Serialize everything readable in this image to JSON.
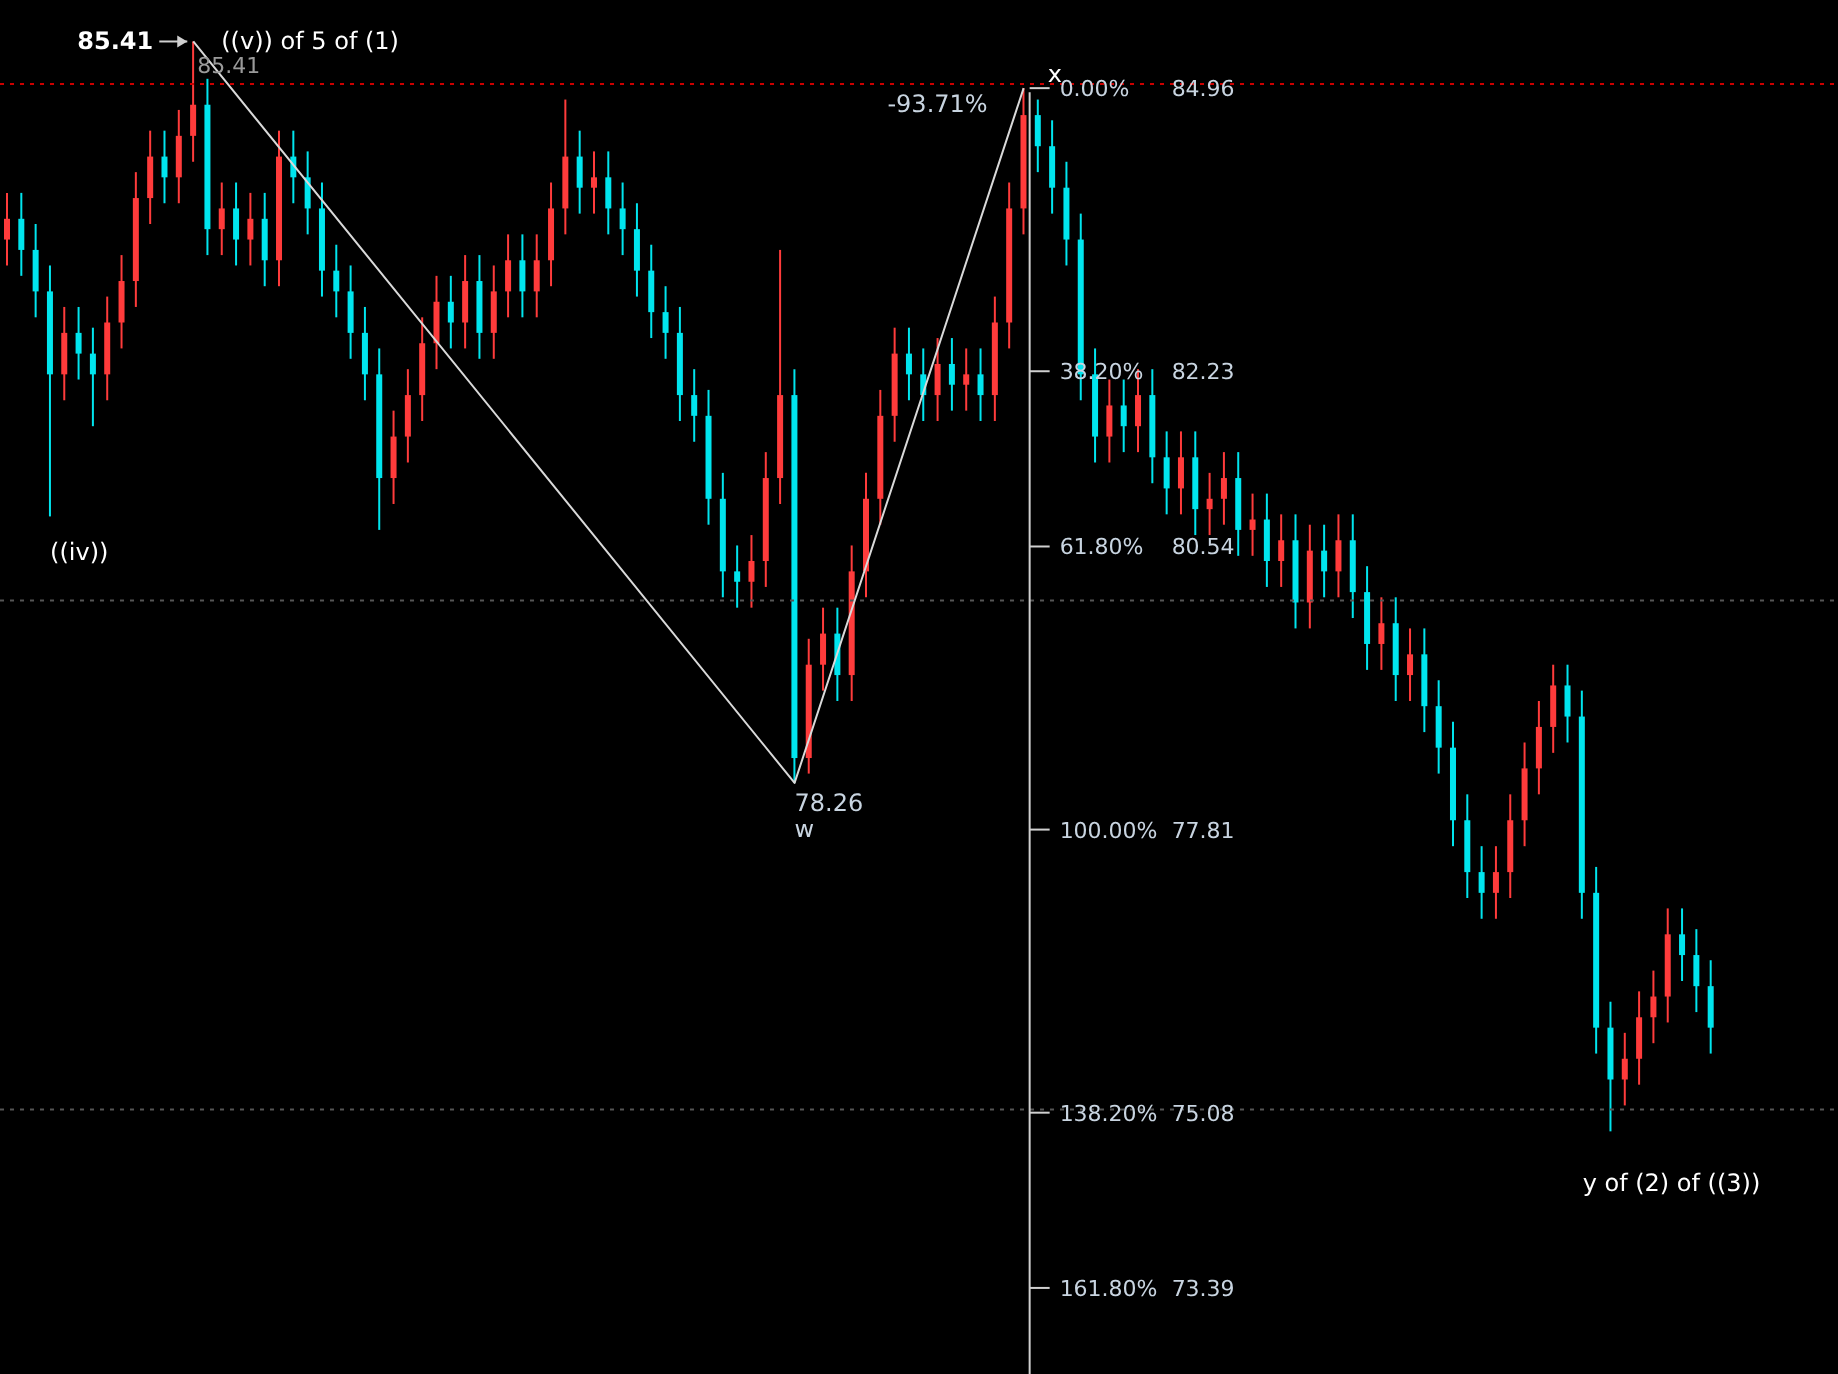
{
  "chart_data": {
    "type": "candlestick",
    "categories": [
      null,
      null,
      null,
      null,
      null,
      null,
      null,
      null,
      null,
      null,
      null,
      null,
      null,
      null,
      null,
      null,
      null,
      null,
      null,
      null,
      null,
      null,
      null,
      null,
      null,
      null,
      null,
      null,
      null,
      null,
      null,
      null,
      null,
      null,
      null,
      null,
      null,
      null,
      null,
      null,
      null,
      null,
      null,
      null,
      null,
      null,
      null,
      null,
      null,
      null,
      null,
      null,
      null,
      null,
      null,
      null,
      null,
      null,
      null,
      null,
      null,
      null,
      null,
      null,
      null,
      null,
      null,
      null,
      null,
      null,
      null,
      null,
      null,
      null,
      null,
      null,
      null,
      null,
      null,
      null,
      null,
      null,
      null,
      null,
      null,
      null,
      null,
      null,
      null,
      null,
      null,
      null,
      null,
      null,
      null,
      null,
      null,
      null,
      null,
      null,
      null,
      null,
      null,
      null,
      null,
      null,
      null,
      null,
      null,
      null,
      null,
      null,
      null,
      null,
      null,
      null,
      null,
      null,
      null,
      null
    ],
    "ohlc": [
      [
        83.5,
        83.95,
        83.25,
        83.7
      ],
      [
        83.7,
        83.95,
        83.15,
        83.4
      ],
      [
        83.4,
        83.65,
        82.75,
        83.0
      ],
      [
        83.0,
        83.25,
        80.83,
        82.2
      ],
      [
        82.2,
        82.85,
        81.95,
        82.6
      ],
      [
        82.6,
        82.85,
        82.15,
        82.4
      ],
      [
        82.4,
        82.65,
        81.7,
        82.2
      ],
      [
        82.2,
        82.95,
        81.95,
        82.7
      ],
      [
        82.7,
        83.35,
        82.45,
        83.1
      ],
      [
        83.1,
        84.15,
        82.85,
        83.9
      ],
      [
        83.9,
        84.55,
        83.65,
        84.3
      ],
      [
        84.3,
        84.55,
        83.85,
        84.1
      ],
      [
        84.1,
        84.75,
        83.85,
        84.5
      ],
      [
        84.5,
        85.41,
        84.25,
        84.8
      ],
      [
        84.8,
        85.05,
        83.35,
        83.6
      ],
      [
        83.6,
        84.05,
        83.35,
        83.8
      ],
      [
        83.8,
        84.05,
        83.25,
        83.5
      ],
      [
        83.5,
        83.95,
        83.25,
        83.7
      ],
      [
        83.7,
        83.95,
        83.05,
        83.3
      ],
      [
        83.3,
        84.55,
        83.05,
        84.3
      ],
      [
        84.3,
        84.55,
        83.85,
        84.1
      ],
      [
        84.1,
        84.35,
        83.55,
        83.8
      ],
      [
        83.8,
        84.05,
        82.95,
        83.2
      ],
      [
        83.2,
        83.45,
        82.75,
        83.0
      ],
      [
        83.0,
        83.25,
        82.35,
        82.6
      ],
      [
        82.6,
        82.85,
        81.95,
        82.2
      ],
      [
        82.2,
        82.45,
        80.7,
        81.2
      ],
      [
        81.2,
        81.85,
        80.95,
        81.6
      ],
      [
        81.6,
        82.25,
        81.35,
        82.0
      ],
      [
        82.0,
        82.75,
        81.75,
        82.5
      ],
      [
        82.5,
        83.15,
        82.25,
        82.9
      ],
      [
        82.9,
        83.15,
        82.45,
        82.7
      ],
      [
        82.7,
        83.35,
        82.45,
        83.1
      ],
      [
        83.1,
        83.35,
        82.35,
        82.6
      ],
      [
        82.6,
        83.25,
        82.35,
        83.0
      ],
      [
        83.0,
        83.55,
        82.75,
        83.3
      ],
      [
        83.3,
        83.55,
        82.75,
        83.0
      ],
      [
        83.0,
        83.55,
        82.75,
        83.3
      ],
      [
        83.3,
        84.05,
        83.05,
        83.8
      ],
      [
        83.8,
        84.85,
        83.55,
        84.3
      ],
      [
        84.3,
        84.55,
        83.75,
        84.0
      ],
      [
        84.0,
        84.35,
        83.75,
        84.1
      ],
      [
        84.1,
        84.35,
        83.55,
        83.8
      ],
      [
        83.8,
        84.05,
        83.35,
        83.6
      ],
      [
        83.6,
        83.85,
        82.95,
        83.2
      ],
      [
        83.2,
        83.45,
        82.55,
        82.8
      ],
      [
        82.8,
        83.05,
        82.35,
        82.6
      ],
      [
        82.6,
        82.85,
        81.75,
        82.0
      ],
      [
        82.0,
        82.25,
        81.55,
        81.8
      ],
      [
        81.8,
        82.05,
        80.75,
        81.0
      ],
      [
        81.0,
        81.25,
        80.05,
        80.3
      ],
      [
        80.3,
        80.55,
        79.95,
        80.2
      ],
      [
        80.2,
        80.65,
        79.95,
        80.4
      ],
      [
        80.4,
        81.45,
        80.15,
        81.2
      ],
      [
        81.2,
        83.4,
        80.95,
        82.0
      ],
      [
        82.0,
        82.25,
        78.26,
        78.5
      ],
      [
        78.5,
        79.65,
        78.35,
        79.4
      ],
      [
        79.4,
        79.95,
        79.15,
        79.7
      ],
      [
        79.7,
        79.95,
        79.05,
        79.3
      ],
      [
        79.3,
        80.55,
        79.05,
        80.3
      ],
      [
        80.3,
        81.25,
        80.05,
        81.0
      ],
      [
        81.0,
        82.05,
        80.75,
        81.8
      ],
      [
        81.8,
        82.65,
        81.55,
        82.4
      ],
      [
        82.4,
        82.65,
        81.95,
        82.2
      ],
      [
        82.2,
        82.45,
        81.75,
        82.0
      ],
      [
        82.0,
        82.55,
        81.75,
        82.3
      ],
      [
        82.3,
        82.55,
        81.85,
        82.1
      ],
      [
        82.1,
        82.45,
        81.85,
        82.2
      ],
      [
        82.2,
        82.45,
        81.75,
        82.0
      ],
      [
        82.0,
        82.95,
        81.75,
        82.7
      ],
      [
        82.7,
        84.05,
        82.45,
        83.8
      ],
      [
        83.8,
        84.96,
        83.55,
        84.7
      ],
      [
        84.7,
        84.85,
        84.15,
        84.4
      ],
      [
        84.4,
        84.65,
        83.75,
        84.0
      ],
      [
        84.0,
        84.25,
        83.25,
        83.5
      ],
      [
        83.5,
        83.75,
        81.95,
        82.2
      ],
      [
        82.2,
        82.45,
        81.35,
        81.6
      ],
      [
        81.6,
        82.15,
        81.35,
        81.9
      ],
      [
        81.9,
        82.15,
        81.45,
        81.7
      ],
      [
        81.7,
        82.25,
        81.45,
        82.0
      ],
      [
        82.0,
        82.25,
        81.15,
        81.4
      ],
      [
        81.4,
        81.65,
        80.85,
        81.1
      ],
      [
        81.1,
        81.65,
        80.85,
        81.4
      ],
      [
        81.4,
        81.65,
        80.65,
        80.9
      ],
      [
        80.9,
        81.25,
        80.65,
        81.0
      ],
      [
        81.0,
        81.45,
        80.75,
        81.2
      ],
      [
        81.2,
        81.45,
        80.45,
        80.7
      ],
      [
        80.7,
        81.05,
        80.45,
        80.8
      ],
      [
        80.8,
        81.05,
        80.15,
        80.4
      ],
      [
        80.4,
        80.85,
        80.15,
        80.6
      ],
      [
        80.6,
        80.85,
        79.75,
        80.0
      ],
      [
        80.0,
        80.75,
        79.75,
        80.5
      ],
      [
        80.5,
        80.75,
        80.05,
        80.3
      ],
      [
        80.3,
        80.85,
        80.05,
        80.6
      ],
      [
        80.6,
        80.85,
        79.85,
        80.1
      ],
      [
        80.1,
        80.35,
        79.35,
        79.6
      ],
      [
        79.6,
        80.05,
        79.35,
        79.8
      ],
      [
        79.8,
        80.05,
        79.05,
        79.3
      ],
      [
        79.3,
        79.75,
        79.05,
        79.5
      ],
      [
        79.5,
        79.75,
        78.75,
        79.0
      ],
      [
        79.0,
        79.25,
        78.35,
        78.6
      ],
      [
        78.6,
        78.85,
        77.65,
        77.9
      ],
      [
        77.9,
        78.15,
        77.15,
        77.4
      ],
      [
        77.4,
        77.65,
        76.95,
        77.2
      ],
      [
        77.2,
        77.65,
        76.95,
        77.4
      ],
      [
        77.4,
        78.15,
        77.15,
        77.9
      ],
      [
        77.9,
        78.65,
        77.65,
        78.4
      ],
      [
        78.4,
        79.05,
        78.15,
        78.8
      ],
      [
        78.8,
        79.4,
        78.55,
        79.2
      ],
      [
        79.2,
        79.4,
        78.65,
        78.9
      ],
      [
        78.9,
        79.15,
        76.95,
        77.2
      ],
      [
        77.2,
        77.45,
        75.65,
        75.9
      ],
      [
        75.9,
        76.15,
        74.9,
        75.4
      ],
      [
        75.4,
        75.85,
        75.15,
        75.6
      ],
      [
        75.6,
        76.25,
        75.35,
        76.0
      ],
      [
        76.0,
        76.45,
        75.75,
        76.2
      ],
      [
        76.2,
        77.05,
        75.95,
        76.8
      ],
      [
        76.8,
        77.05,
        76.35,
        76.6
      ],
      [
        76.6,
        76.85,
        76.05,
        76.3
      ],
      [
        76.3,
        76.55,
        75.65,
        75.9
      ]
    ],
    "colors": [
      "#ff3b3b",
      "#00e5ee",
      "#00e5ee",
      "#00e5ee",
      "#ff3b3b",
      "#00e5ee",
      "#00e5ee",
      "#ff3b3b",
      "#ff3b3b",
      "#ff3b3b",
      "#ff3b3b",
      "#00e5ee",
      "#ff3b3b",
      "#ff3b3b",
      "#00e5ee",
      "#ff3b3b",
      "#00e5ee",
      "#ff3b3b",
      "#00e5ee",
      "#ff3b3b",
      "#00e5ee",
      "#00e5ee",
      "#00e5ee",
      "#00e5ee",
      "#00e5ee",
      "#00e5ee",
      "#00e5ee",
      "#ff3b3b",
      "#ff3b3b",
      "#ff3b3b",
      "#ff3b3b",
      "#00e5ee",
      "#ff3b3b",
      "#00e5ee",
      "#ff3b3b",
      "#ff3b3b",
      "#00e5ee",
      "#ff3b3b",
      "#ff3b3b",
      "#ff3b3b",
      "#00e5ee",
      "#ff3b3b",
      "#00e5ee",
      "#00e5ee",
      "#00e5ee",
      "#00e5ee",
      "#00e5ee",
      "#00e5ee",
      "#00e5ee",
      "#00e5ee",
      "#00e5ee",
      "#00e5ee",
      "#ff3b3b",
      "#ff3b3b",
      "#ff3b3b",
      "#00e5ee",
      "#ff3b3b",
      "#ff3b3b",
      "#00e5ee",
      "#ff3b3b",
      "#ff3b3b",
      "#ff3b3b",
      "#ff3b3b",
      "#00e5ee",
      "#00e5ee",
      "#ff3b3b",
      "#00e5ee",
      "#ff3b3b",
      "#00e5ee",
      "#ff3b3b",
      "#ff3b3b",
      "#ff3b3b",
      "#00e5ee",
      "#00e5ee",
      "#00e5ee",
      "#00e5ee",
      "#00e5ee",
      "#ff3b3b",
      "#00e5ee",
      "#ff3b3b",
      "#00e5ee",
      "#00e5ee",
      "#ff3b3b",
      "#00e5ee",
      "#ff3b3b",
      "#ff3b3b",
      "#00e5ee",
      "#ff3b3b",
      "#00e5ee",
      "#ff3b3b",
      "#00e5ee",
      "#ff3b3b",
      "#00e5ee",
      "#ff3b3b",
      "#00e5ee",
      "#00e5ee",
      "#ff3b3b",
      "#00e5ee",
      "#ff3b3b",
      "#00e5ee",
      "#00e5ee",
      "#00e5ee",
      "#00e5ee",
      "#00e5ee",
      "#ff3b3b",
      "#ff3b3b",
      "#ff3b3b",
      "#ff3b3b",
      "#ff3b3b",
      "#00e5ee",
      "#00e5ee",
      "#00e5ee",
      "#00e5ee",
      "#ff3b3b",
      "#ff3b3b",
      "#ff3b3b",
      "#ff3b3b",
      "#00e5ee",
      "#00e5ee",
      "#00e5ee"
    ],
    "series": [
      {
        "type": "line",
        "color": "#d9d9d9",
        "values": [
          null,
          null,
          null,
          null,
          null,
          null,
          null,
          null,
          null,
          null,
          null,
          null,
          null,
          85.41,
          null,
          null,
          null,
          null,
          null,
          null,
          null,
          null,
          null,
          null,
          null,
          null,
          null,
          null,
          null,
          null,
          null,
          null,
          null,
          null,
          null,
          null,
          null,
          null,
          null,
          null,
          null,
          null,
          null,
          null,
          null,
          null,
          null,
          null,
          null,
          null,
          null,
          null,
          null,
          null,
          null,
          78.26,
          null,
          null,
          null,
          null,
          null,
          null,
          null,
          null,
          null,
          null,
          null,
          null,
          null,
          null,
          null,
          84.96,
          null,
          null,
          null,
          null,
          null,
          null,
          null,
          null,
          null,
          null,
          null,
          null,
          null,
          null,
          null,
          null,
          null,
          null,
          null,
          null,
          null,
          null,
          null,
          null,
          null,
          null,
          null,
          null,
          null,
          null,
          null,
          null,
          null,
          null,
          null,
          null,
          null,
          null,
          null,
          null,
          null,
          null,
          null,
          null,
          null,
          null,
          null,
          null
        ]
      }
    ],
    "ylim": [
      72.56,
      85.81
    ],
    "ref_lines": [
      {
        "axis": "y",
        "value": 85.0,
        "color": "#cc0000",
        "line_style": "dotted"
      },
      {
        "axis": "y",
        "value": 80.02,
        "color": "#555555",
        "line_style": "dotted"
      },
      {
        "axis": "y",
        "value": 75.11,
        "color": "#555555",
        "line_style": "dotted"
      }
    ],
    "yticks": [
      84.96,
      82.23,
      80.54,
      77.81,
      75.08,
      73.39
    ],
    "annotations": [
      "85.41",
      "((v)) of 5 of (1)",
      "85.41",
      "((iv))",
      "78.26",
      "w",
      "x",
      "-93.71%",
      "y of (2) of ((3))",
      "0.00%",
      "38.20%",
      "61.80%",
      "100.00%",
      "138.20%",
      "161.80%"
    ]
  }
}
